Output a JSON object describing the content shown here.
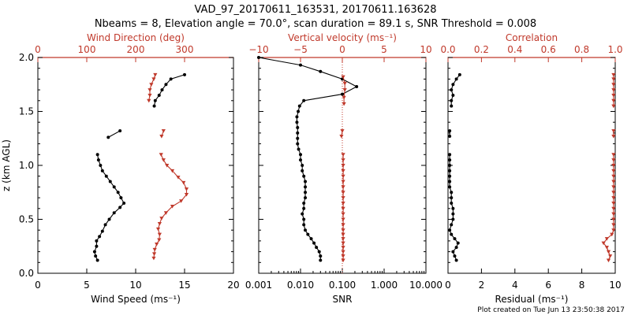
{
  "title_line1": "VAD_97_20170611_163531, 20170611.163628",
  "title_line2": "Nbeams = 8, Elevation angle = 70.0°, scan duration = 89.1 s, SNR Threshold = 0.008",
  "footer": "Plot created on Tue Jun 13 23:50:38 2017",
  "colors": {
    "red": "#c0392b",
    "black": "#000000",
    "dotted": "#c0392b"
  },
  "chart_data": [
    {
      "type": "line",
      "panel": "wind",
      "ylabel": "z (km AGL)",
      "ylim": [
        0,
        2
      ],
      "yticks": [
        "0.0",
        "0.5",
        "1.0",
        "1.5",
        "2.0"
      ],
      "x_bottom": {
        "label": "Wind Speed (ms⁻¹)",
        "lim": [
          0,
          20
        ],
        "ticks": [
          "0",
          "5",
          "10",
          "15",
          "20"
        ]
      },
      "x_top": {
        "label": "Wind Direction (deg)",
        "lim": [
          0,
          400
        ],
        "ticks": [
          "0",
          "100",
          "200",
          "300"
        ]
      },
      "series": [
        {
          "axis": "bottom",
          "color": "black",
          "marker": "dot",
          "segments": [
            [
              [
                6.1,
                0.12
              ],
              [
                5.9,
                0.16
              ],
              [
                5.8,
                0.2
              ],
              [
                6.0,
                0.25
              ],
              [
                6.0,
                0.3
              ],
              [
                6.3,
                0.34
              ],
              [
                6.6,
                0.39
              ],
              [
                6.9,
                0.45
              ],
              [
                7.3,
                0.5
              ],
              [
                7.8,
                0.56
              ],
              [
                8.4,
                0.61
              ],
              [
                8.8,
                0.65
              ],
              [
                8.5,
                0.7
              ],
              [
                8.2,
                0.75
              ],
              [
                7.8,
                0.8
              ],
              [
                7.4,
                0.85
              ],
              [
                7.0,
                0.9
              ],
              [
                6.6,
                0.95
              ],
              [
                6.4,
                1.0
              ],
              [
                6.2,
                1.05
              ],
              [
                6.1,
                1.1
              ]
            ],
            [
              [
                7.2,
                1.26
              ],
              [
                8.4,
                1.32
              ]
            ],
            [
              [
                11.9,
                1.55
              ],
              [
                12.0,
                1.6
              ],
              [
                12.4,
                1.65
              ],
              [
                12.7,
                1.7
              ],
              [
                13.1,
                1.75
              ],
              [
                13.6,
                1.8
              ],
              [
                15.0,
                1.84
              ]
            ]
          ]
        },
        {
          "axis": "top",
          "color": "red",
          "marker": "triangle",
          "segments": [
            [
              [
                237,
                0.14
              ],
              [
                238,
                0.18
              ],
              [
                239,
                0.22
              ],
              [
                243,
                0.27
              ],
              [
                248,
                0.31
              ],
              [
                249,
                0.36
              ],
              [
                246,
                0.41
              ],
              [
                249,
                0.46
              ],
              [
                253,
                0.51
              ],
              [
                262,
                0.56
              ],
              [
                275,
                0.62
              ],
              [
                293,
                0.67
              ],
              [
                304,
                0.73
              ],
              [
                304,
                0.78
              ],
              [
                298,
                0.84
              ],
              [
                287,
                0.89
              ],
              [
                275,
                0.95
              ],
              [
                264,
                1.0
              ],
              [
                257,
                1.05
              ],
              [
                252,
                1.1
              ]
            ],
            [
              [
                253,
                1.27
              ],
              [
                257,
                1.32
              ]
            ],
            [
              [
                227,
                1.6
              ],
              [
                229,
                1.65
              ],
              [
                229,
                1.7
              ],
              [
                232,
                1.75
              ],
              [
                237,
                1.8
              ],
              [
                240,
                1.84
              ]
            ]
          ]
        }
      ]
    },
    {
      "type": "line",
      "panel": "velocity",
      "ylim": [
        0,
        2
      ],
      "x_bottom": {
        "label": "SNR",
        "scale": "log",
        "lim": [
          0.001,
          10
        ],
        "ticks": [
          "0.001",
          "0.010",
          "0.100",
          "1.000",
          "10.000"
        ]
      },
      "x_top": {
        "label": "Vertical velocity (ms⁻¹)",
        "lim": [
          -10,
          10
        ],
        "ticks": [
          "−10",
          "−5",
          "0",
          "5",
          "10"
        ]
      },
      "reference_line": {
        "axis": "top",
        "value": 0,
        "style": "dotted",
        "color": "red"
      },
      "series": [
        {
          "axis": "bottom",
          "color": "black",
          "marker": "dot",
          "segments": [
            [
              [
                0.03,
                0.12
              ],
              [
                0.03,
                0.16
              ],
              [
                0.028,
                0.2
              ],
              [
                0.024,
                0.24
              ],
              [
                0.021,
                0.28
              ],
              [
                0.018,
                0.32
              ],
              [
                0.015,
                0.36
              ],
              [
                0.013,
                0.4
              ],
              [
                0.012,
                0.45
              ],
              [
                0.012,
                0.5
              ],
              [
                0.011,
                0.55
              ],
              [
                0.012,
                0.6
              ],
              [
                0.012,
                0.65
              ],
              [
                0.013,
                0.7
              ],
              [
                0.013,
                0.75
              ],
              [
                0.013,
                0.8
              ],
              [
                0.013,
                0.85
              ],
              [
                0.012,
                0.9
              ],
              [
                0.011,
                0.95
              ],
              [
                0.011,
                1.0
              ],
              [
                0.01,
                1.05
              ],
              [
                0.01,
                1.1
              ],
              [
                0.009,
                1.15
              ],
              [
                0.0085,
                1.2
              ],
              [
                0.0085,
                1.25
              ],
              [
                0.0085,
                1.3
              ],
              [
                0.0085,
                1.35
              ],
              [
                0.0082,
                1.4
              ],
              [
                0.0082,
                1.45
              ],
              [
                0.0088,
                1.5
              ],
              [
                0.0095,
                1.55
              ],
              [
                0.012,
                1.6
              ],
              [
                0.1,
                1.66
              ],
              [
                0.22,
                1.73
              ],
              [
                0.1,
                1.8
              ],
              [
                0.03,
                1.87
              ],
              [
                0.01,
                1.93
              ],
              [
                0.001,
                2.0
              ]
            ]
          ]
        },
        {
          "axis": "top",
          "color": "red",
          "marker": "triangle",
          "segments": [
            [
              [
                0.1,
                0.12
              ],
              [
                0.1,
                0.16
              ],
              [
                0.1,
                0.2
              ],
              [
                0.1,
                0.24
              ],
              [
                0.1,
                0.28
              ],
              [
                0.1,
                0.32
              ],
              [
                0.1,
                0.36
              ],
              [
                0.1,
                0.4
              ],
              [
                0.1,
                0.45
              ],
              [
                0.1,
                0.5
              ],
              [
                0.1,
                0.55
              ],
              [
                0.1,
                0.6
              ],
              [
                0.1,
                0.65
              ],
              [
                0.1,
                0.7
              ],
              [
                0.1,
                0.75
              ],
              [
                0.1,
                0.8
              ],
              [
                0.1,
                0.85
              ],
              [
                0.1,
                0.9
              ],
              [
                0.1,
                0.95
              ],
              [
                0.1,
                1.0
              ],
              [
                0.1,
                1.05
              ],
              [
                0.1,
                1.1
              ]
            ],
            [
              [
                -0.1,
                1.27
              ],
              [
                0.0,
                1.32
              ]
            ],
            [
              [
                0.2,
                1.57
              ],
              [
                0.2,
                1.63
              ],
              [
                0.3,
                1.7
              ],
              [
                0.3,
                1.76
              ],
              [
                0.1,
                1.82
              ]
            ]
          ]
        }
      ]
    },
    {
      "type": "line",
      "panel": "residual",
      "ylim": [
        0,
        2
      ],
      "x_bottom": {
        "label": "Residual (ms⁻¹)",
        "lim": [
          0,
          10
        ],
        "ticks": [
          "0",
          "2",
          "4",
          "6",
          "8",
          "10"
        ]
      },
      "x_top": {
        "label": "Correlation",
        "lim": [
          0,
          1
        ],
        "ticks": [
          "0.0",
          "0.2",
          "0.4",
          "0.6",
          "0.8",
          "1.0"
        ]
      },
      "series": [
        {
          "axis": "bottom",
          "color": "black",
          "marker": "dot",
          "segments": [
            [
              [
                0.5,
                0.12
              ],
              [
                0.4,
                0.16
              ],
              [
                0.3,
                0.2
              ],
              [
                0.5,
                0.24
              ],
              [
                0.6,
                0.28
              ],
              [
                0.4,
                0.32
              ],
              [
                0.2,
                0.36
              ],
              [
                0.1,
                0.4
              ],
              [
                0.2,
                0.45
              ],
              [
                0.3,
                0.5
              ],
              [
                0.3,
                0.55
              ],
              [
                0.3,
                0.6
              ],
              [
                0.2,
                0.65
              ],
              [
                0.2,
                0.7
              ],
              [
                0.2,
                0.75
              ],
              [
                0.1,
                0.8
              ],
              [
                0.1,
                0.85
              ],
              [
                0.1,
                0.9
              ],
              [
                0.1,
                0.95
              ],
              [
                0.1,
                1.0
              ],
              [
                0.1,
                1.05
              ],
              [
                0.1,
                1.1
              ]
            ],
            [
              [
                0.1,
                1.27
              ],
              [
                0.1,
                1.32
              ]
            ],
            [
              [
                0.2,
                1.55
              ],
              [
                0.2,
                1.6
              ],
              [
                0.3,
                1.65
              ],
              [
                0.2,
                1.7
              ],
              [
                0.3,
                1.75
              ],
              [
                0.5,
                1.8
              ],
              [
                0.7,
                1.84
              ]
            ]
          ]
        },
        {
          "axis": "top",
          "color": "red",
          "marker": "triangle",
          "segments": [
            [
              [
                0.96,
                0.12
              ],
              [
                0.97,
                0.16
              ],
              [
                0.96,
                0.2
              ],
              [
                0.95,
                0.24
              ],
              [
                0.93,
                0.28
              ],
              [
                0.95,
                0.32
              ],
              [
                0.98,
                0.36
              ],
              [
                0.99,
                0.4
              ],
              [
                0.99,
                0.45
              ],
              [
                0.99,
                0.5
              ],
              [
                0.99,
                0.55
              ],
              [
                0.99,
                0.6
              ],
              [
                0.99,
                0.65
              ],
              [
                0.99,
                0.7
              ],
              [
                0.99,
                0.75
              ],
              [
                0.99,
                0.8
              ],
              [
                0.99,
                0.85
              ],
              [
                0.99,
                0.9
              ],
              [
                0.99,
                0.95
              ],
              [
                0.99,
                1.0
              ],
              [
                0.99,
                1.05
              ],
              [
                0.99,
                1.1
              ]
            ],
            [
              [
                0.99,
                1.27
              ],
              [
                0.99,
                1.32
              ]
            ],
            [
              [
                0.99,
                1.55
              ],
              [
                0.99,
                1.6
              ],
              [
                0.99,
                1.65
              ],
              [
                0.99,
                1.7
              ],
              [
                0.99,
                1.75
              ],
              [
                0.99,
                1.8
              ],
              [
                0.99,
                1.84
              ]
            ]
          ]
        }
      ]
    }
  ]
}
